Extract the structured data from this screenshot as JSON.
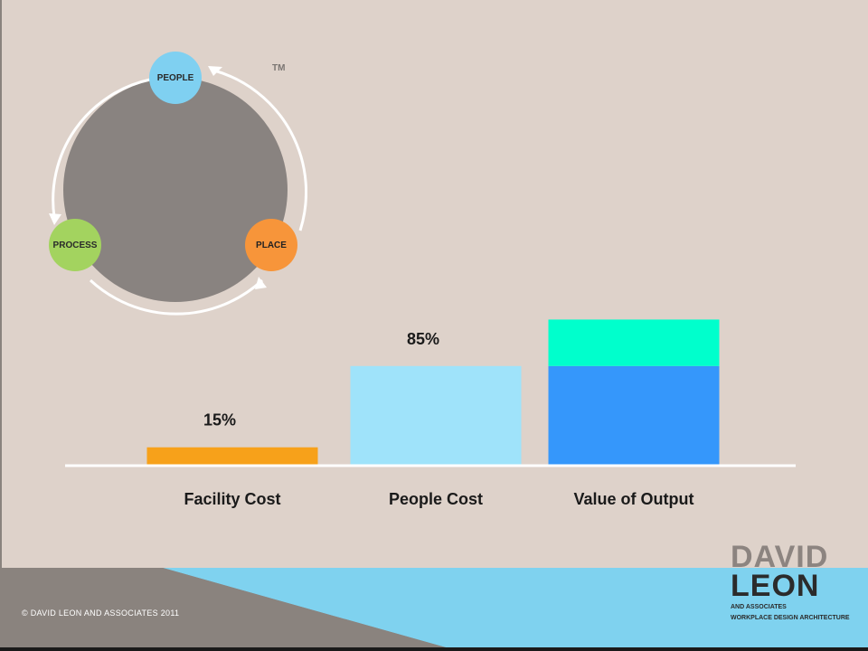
{
  "cycle": {
    "nodes": {
      "people": "PEOPLE",
      "process": "PROCESS",
      "place": "PLACE"
    },
    "trademark": "TM",
    "colors": {
      "people": "#7fd0f1",
      "process": "#a3d35f",
      "place": "#f7953a",
      "hub": "#898380"
    }
  },
  "chart_data": {
    "type": "bar",
    "categories": [
      "Facility Cost",
      "People Cost",
      "Value of Output"
    ],
    "series": [
      {
        "values": [
          15,
          85,
          85
        ]
      },
      {
        "values": [
          0,
          0,
          40
        ]
      }
    ],
    "data_labels": [
      "15%",
      "85%",
      ""
    ],
    "colors": [
      [
        "#f7a11a"
      ],
      [
        "#9fe3fa"
      ],
      [
        "#3597fb",
        "#00ffcc"
      ]
    ],
    "title": "",
    "xlabel": "",
    "ylabel": "",
    "ylim": [
      0,
      260
    ],
    "grid": false,
    "legend": "none"
  },
  "footer": {
    "copyright": "© DAVID LEON AND ASSOCIATES 2011",
    "logo_line1": "DAVID",
    "logo_line2": "LEON",
    "logo_sub1": "AND ASSOCIATES",
    "logo_sub2": "WORKPLACE DESIGN   ARCHITECTURE"
  }
}
